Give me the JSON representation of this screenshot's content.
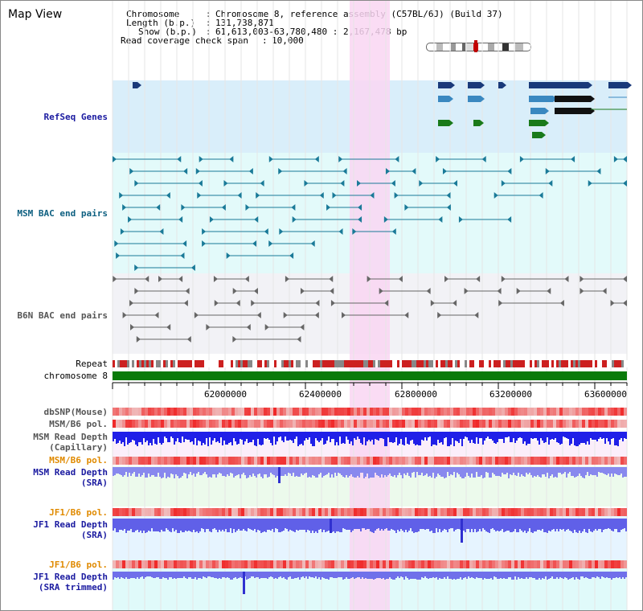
{
  "title": "Map View",
  "header": {
    "chromosome_label": "Chromosome",
    "chromosome_value": "Chromosome 8, reference assembly (C57BL/6J) (Build 37)",
    "length_label": "Length (b.p.)",
    "length_value": "131,738,871",
    "show_label": "Show (b.p.)",
    "show_value": "61,613,003-63,780,480 : 2,167,478 bp",
    "coverage_label": "Read coverage check span",
    "coverage_value": "10,000"
  },
  "tracks": {
    "refseq": "RefSeq Genes",
    "msm_bac": "MSM BAC end pairs",
    "b6n_bac": "B6N BAC end pairs",
    "repeat": "Repeat",
    "chromosome": "chromosome 8",
    "dbsnp": "dbSNP(Mouse)",
    "msm_b6_pol_1": "MSM/B6 pol.",
    "msm_depth_cap": "MSM Read Depth\n(Capillary)",
    "msm_b6_pol_2": "MSM/B6 pol.",
    "msm_depth_sra": "MSM Read Depth\n(SRA)",
    "jf1_b6_pol_1": "JF1/B6 pol.",
    "jf1_depth_sra": "JF1 Read Depth\n(SRA)",
    "jf1_b6_pol_2": "JF1/B6 pol.",
    "jf1_depth_trim": "JF1 Read Depth\n(SRA trimmed)"
  },
  "axis": {
    "ticks": [
      "62000000",
      "62400000",
      "62800000",
      "63200000",
      "63600000"
    ]
  },
  "colors": {
    "highlight": "#f9d6f2",
    "refseq_bg": "#d9eefa",
    "msm_bg": "#e3fafa",
    "b6n_bg": "#f2f2f6",
    "chromosome": "#0a7a0a",
    "depth_blue": "#2020e8",
    "depth_light": "#8888ee",
    "pol_red": "#f04040"
  }
}
